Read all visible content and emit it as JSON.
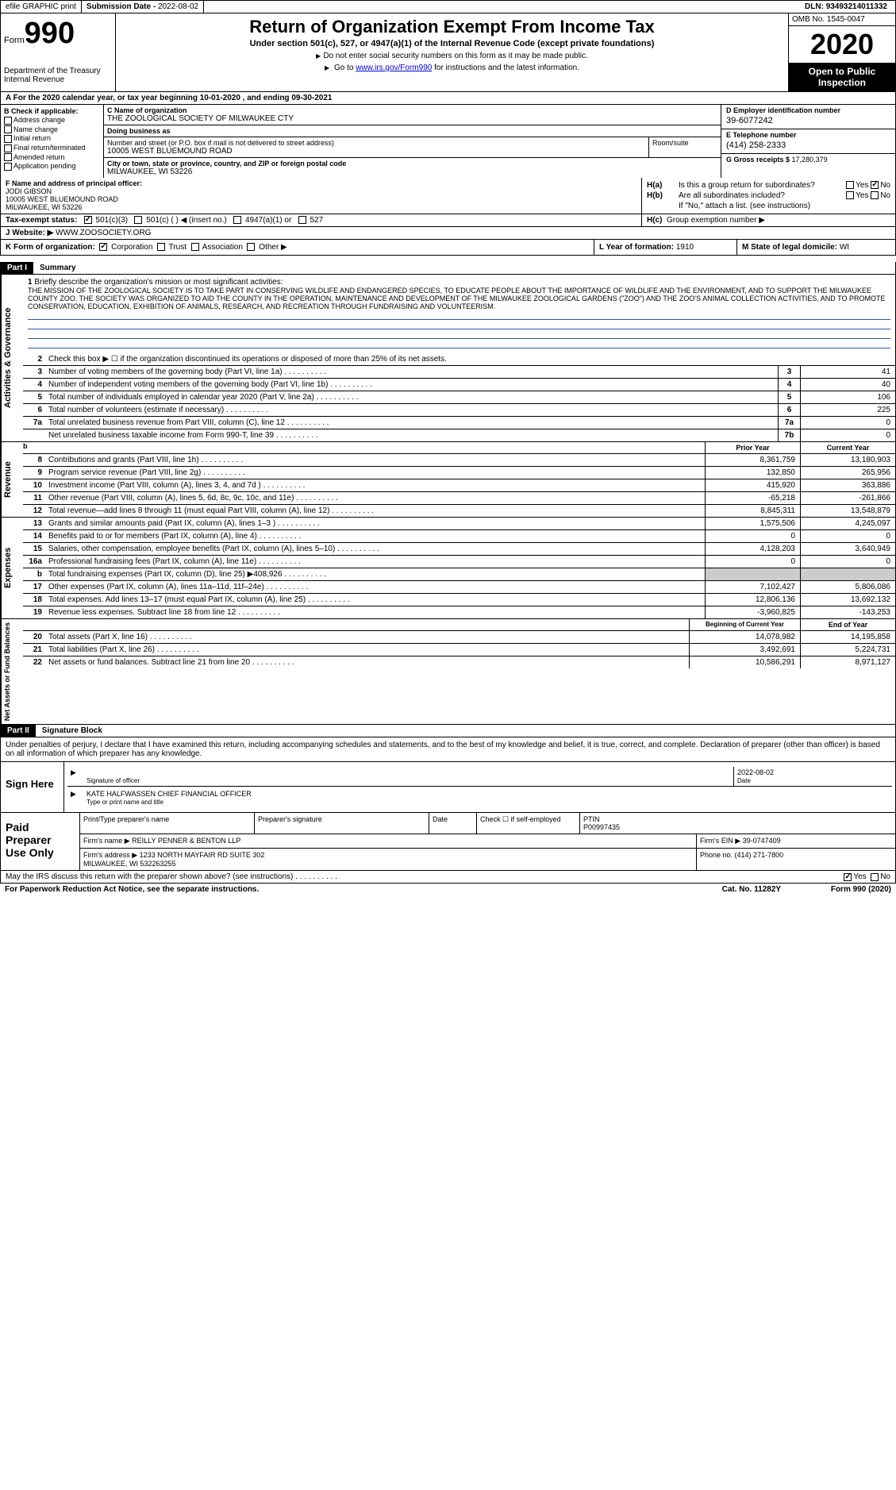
{
  "topbar": {
    "efile": "efile GRAPHIC print",
    "submission_label": "Submission Date - ",
    "submission_date": "2022-08-02",
    "dln_label": "DLN: ",
    "dln": "93493214011332"
  },
  "header": {
    "form_label": "Form",
    "form_number": "990",
    "dept": "Department of the Treasury\nInternal Revenue",
    "title": "Return of Organization Exempt From Income Tax",
    "subtitle": "Under section 501(c), 527, or 4947(a)(1) of the Internal Revenue Code (except private foundations)",
    "note1": "Do not enter social security numbers on this form as it may be made public.",
    "note2_pre": "Go to ",
    "note2_link": "www.irs.gov/Form990",
    "note2_post": " for instructions and the latest information.",
    "omb": "OMB No. 1545-0047",
    "year": "2020",
    "open": "Open to Public\nInspection"
  },
  "row_a": "A  For the 2020 calendar year, or tax year beginning 10-01-2020    , and ending 09-30-2021",
  "col_b": {
    "title": "B Check if applicable:",
    "items": [
      "Address change",
      "Name change",
      "Initial return",
      "Final return/terminated",
      "Amended return",
      "Application pending"
    ]
  },
  "col_c": {
    "name_label": "C Name of organization",
    "name": "THE ZOOLOGICAL SOCIETY OF MILWAUKEE CTY",
    "dba_label": "Doing business as",
    "dba": "",
    "addr_label": "Number and street (or P.O. box if mail is not delivered to street address)",
    "addr": "10005 WEST BLUEMOUND ROAD",
    "room_label": "Room/suite",
    "city_label": "City or town, state or province, country, and ZIP or foreign postal code",
    "city": "MILWAUKEE, WI  53226"
  },
  "col_de": {
    "d_label": "D Employer identification number",
    "d_val": "39-6077242",
    "e_label": "E Telephone number",
    "e_val": "(414) 258-2333",
    "g_label": "G Gross receipts $ ",
    "g_val": "17,280,379"
  },
  "col_f": {
    "label": "F  Name and address of principal officer:",
    "name": "JODI GIBSON",
    "addr": "10005 WEST BLUEMOUND ROAD",
    "city": "MILWAUKEE, WI  53226"
  },
  "col_h": {
    "ha_label": "H(a)",
    "ha_text": "Is this a group return for subordinates?",
    "ha_yes": "Yes",
    "ha_no": "No",
    "hb_label": "H(b)",
    "hb_text": "Are all subordinates included?",
    "hb_note": "If \"No,\" attach a list. (see instructions)",
    "hc_label": "H(c)",
    "hc_text": "Group exemption number ▶"
  },
  "row_i": {
    "label": "Tax-exempt status:",
    "opts": [
      "501(c)(3)",
      "501(c) (  ) ◀ (insert no.)",
      "4947(a)(1) or",
      "527"
    ]
  },
  "row_j": {
    "label": "J   Website: ▶",
    "val": "WWW.ZOOSOCIETY.ORG"
  },
  "row_k": {
    "label": "K Form of organization:",
    "opts": [
      "Corporation",
      "Trust",
      "Association",
      "Other ▶"
    ],
    "l_label": "L Year of formation: ",
    "l_val": "1910",
    "m_label": "M State of legal domicile: ",
    "m_val": "WI"
  },
  "part1": {
    "label": "Part I",
    "title": "Summary"
  },
  "mission": {
    "num": "1",
    "label": "Briefly describe the organization's mission or most significant activities:",
    "text": "THE MISSION OF THE ZOOLOGICAL SOCIETY IS TO TAKE PART IN CONSERVING WILDLIFE AND ENDANGERED SPECIES, TO EDUCATE PEOPLE ABOUT THE IMPORTANCE OF WILDLIFE AND THE ENVIRONMENT, AND TO SUPPORT THE MILWAUKEE COUNTY ZOO. THE SOCIETY WAS ORGANIZED TO AID THE COUNTY IN THE OPERATION, MAINTENANCE AND DEVELOPMENT OF THE MILWAUKEE ZOOLOGICAL GARDENS (\"ZOO\") AND THE ZOO'S ANIMAL COLLECTION ACTIVITIES, AND TO PROMOTE CONSERVATION, EDUCATION, EXHIBITION OF ANIMALS, RESEARCH, AND RECREATION THROUGH FUNDRAISING AND VOLUNTEERISM."
  },
  "gov_rows": [
    {
      "num": "2",
      "text": "Check this box ▶ ☐  if the organization discontinued its operations or disposed of more than 25% of its net assets.",
      "ncol": "",
      "val": ""
    },
    {
      "num": "3",
      "text": "Number of voting members of the governing body (Part VI, line 1a)",
      "ncol": "3",
      "val": "41"
    },
    {
      "num": "4",
      "text": "Number of independent voting members of the governing body (Part VI, line 1b)",
      "ncol": "4",
      "val": "40"
    },
    {
      "num": "5",
      "text": "Total number of individuals employed in calendar year 2020 (Part V, line 2a)",
      "ncol": "5",
      "val": "106"
    },
    {
      "num": "6",
      "text": "Total number of volunteers (estimate if necessary)",
      "ncol": "6",
      "val": "225"
    },
    {
      "num": "7a",
      "text": "Total unrelated business revenue from Part VIII, column (C), line 12",
      "ncol": "7a",
      "val": "0"
    },
    {
      "num": "",
      "text": "Net unrelated business taxable income from Form 990-T, line 39",
      "ncol": "7b",
      "val": "0"
    }
  ],
  "rev_header": {
    "num": "b",
    "c1": "Prior Year",
    "c2": "Current Year"
  },
  "rev_rows": [
    {
      "num": "8",
      "text": "Contributions and grants (Part VIII, line 1h)",
      "c1": "8,361,759",
      "c2": "13,180,903"
    },
    {
      "num": "9",
      "text": "Program service revenue (Part VIII, line 2g)",
      "c1": "132,850",
      "c2": "265,956"
    },
    {
      "num": "10",
      "text": "Investment income (Part VIII, column (A), lines 3, 4, and 7d )",
      "c1": "415,920",
      "c2": "363,886"
    },
    {
      "num": "11",
      "text": "Other revenue (Part VIII, column (A), lines 5, 6d, 8c, 9c, 10c, and 11e)",
      "c1": "-65,218",
      "c2": "-261,866"
    },
    {
      "num": "12",
      "text": "Total revenue—add lines 8 through 11 (must equal Part VIII, column (A), line 12)",
      "c1": "8,845,311",
      "c2": "13,548,879"
    }
  ],
  "exp_rows": [
    {
      "num": "13",
      "text": "Grants and similar amounts paid (Part IX, column (A), lines 1–3 )",
      "c1": "1,575,506",
      "c2": "4,245,097"
    },
    {
      "num": "14",
      "text": "Benefits paid to or for members (Part IX, column (A), line 4)",
      "c1": "0",
      "c2": "0"
    },
    {
      "num": "15",
      "text": "Salaries, other compensation, employee benefits (Part IX, column (A), lines 5–10)",
      "c1": "4,128,203",
      "c2": "3,640,949"
    },
    {
      "num": "16a",
      "text": "Professional fundraising fees (Part IX, column (A), line 11e)",
      "c1": "0",
      "c2": "0"
    },
    {
      "num": "b",
      "text": "Total fundraising expenses (Part IX, column (D), line 25) ▶408,926",
      "c1": "",
      "c2": "",
      "shaded": true
    },
    {
      "num": "17",
      "text": "Other expenses (Part IX, column (A), lines 11a–11d, 11f–24e)",
      "c1": "7,102,427",
      "c2": "5,806,086"
    },
    {
      "num": "18",
      "text": "Total expenses. Add lines 13–17 (must equal Part IX, column (A), line 25)",
      "c1": "12,806,136",
      "c2": "13,692,132"
    },
    {
      "num": "19",
      "text": "Revenue less expenses. Subtract line 18 from line 12",
      "c1": "-3,960,825",
      "c2": "-143,253"
    }
  ],
  "net_header": {
    "c1": "Beginning of Current Year",
    "c2": "End of Year"
  },
  "net_rows": [
    {
      "num": "20",
      "text": "Total assets (Part X, line 16)",
      "c1": "14,078,982",
      "c2": "14,195,858"
    },
    {
      "num": "21",
      "text": "Total liabilities (Part X, line 26)",
      "c1": "3,492,691",
      "c2": "5,224,731"
    },
    {
      "num": "22",
      "text": "Net assets or fund balances. Subtract line 21 from line 20",
      "c1": "10,586,291",
      "c2": "8,971,127"
    }
  ],
  "part2": {
    "label": "Part II",
    "title": "Signature Block"
  },
  "sig": {
    "perjury": "Under penalties of perjury, I declare that I have examined this return, including accompanying schedules and statements, and to the best of my knowledge and belief, it is true, correct, and complete. Declaration of preparer (other than officer) is based on all information of which preparer has any knowledge.",
    "sign_here": "Sign Here",
    "sig_label": "Signature of officer",
    "date_label": "Date",
    "date_val": "2022-08-02",
    "name": "KATE HALFWASSEN  CHIEF FINANCIAL OFFICER",
    "name_label": "Type or print name and title"
  },
  "prep": {
    "title": "Paid Preparer Use Only",
    "r1_c1": "Print/Type preparer's name",
    "r1_c2": "Preparer's signature",
    "r1_c3": "Date",
    "r1_c4": "Check ☐ if self-employed",
    "r1_c5_label": "PTIN",
    "r1_c5_val": "P00997435",
    "r2_label": "Firm's name    ▶ ",
    "r2_val": "REILLY PENNER & BENTON LLP",
    "r2_ein_label": "Firm's EIN ▶ ",
    "r2_ein": "39-0747409",
    "r3_label": "Firm's address ▶ ",
    "r3_val": "1233 NORTH MAYFAIR RD SUITE 302\nMILWAUKEE, WI  532263255",
    "r3_phone_label": "Phone no. ",
    "r3_phone": "(414) 271-7800"
  },
  "discuss": {
    "text": "May the IRS discuss this return with the preparer shown above? (see instructions)",
    "yes": "Yes",
    "no": "No"
  },
  "footer": {
    "left": "For Paperwork Reduction Act Notice, see the separate instructions.",
    "mid": "Cat. No. 11282Y",
    "right": "Form 990 (2020)"
  },
  "side_labels": {
    "gov": "Activities & Governance",
    "rev": "Revenue",
    "exp": "Expenses",
    "net": "Net Assets or Fund Balances"
  },
  "colors": {
    "black": "#000000",
    "link": "#0000cc",
    "line": "#3355aa",
    "shade": "#cccccc"
  }
}
